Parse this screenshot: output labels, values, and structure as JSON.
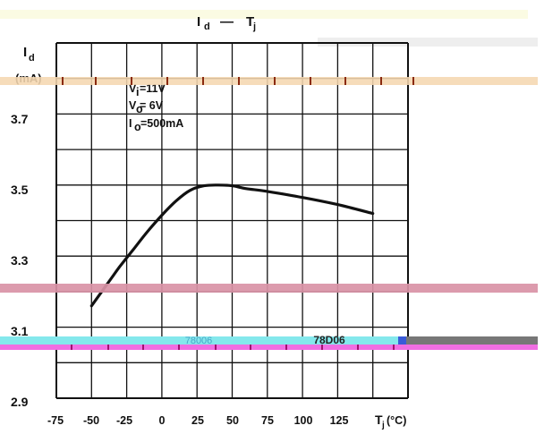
{
  "chart_data": {
    "type": "line",
    "title": "Id — Tj",
    "title_main": "I",
    "title_sub": "d",
    "title_sep": "—",
    "title_x_main": "T",
    "title_x_sub": "j",
    "ylabel": "Id (mA)",
    "ylabel_main": "I",
    "ylabel_sub": "d",
    "ylabel_unit": "(mA)",
    "xlabel": "Tj (°C)",
    "xlabel_main": "T",
    "xlabel_sub": "j",
    "xlabel_unit": "(°C)",
    "x_ticks": [
      -75,
      -50,
      -25,
      0,
      25,
      50,
      75,
      100,
      125
    ],
    "x_tick_labels": [
      "-75",
      "-50",
      "-25",
      "0",
      "25",
      "50",
      "75",
      "100",
      "125"
    ],
    "y_ticks": [
      2.9,
      3.1,
      3.3,
      3.5,
      3.7
    ],
    "y_tick_labels": [
      "2.9",
      "3.1",
      "3.3",
      "3.5",
      "3.7"
    ],
    "xlim": [
      -75,
      175
    ],
    "ylim": [
      2.9,
      3.9
    ],
    "grid": true,
    "series": [
      {
        "x": [
          -50,
          -40,
          -30,
          -20,
          -10,
          0,
          10,
          20,
          30,
          40,
          50,
          60,
          75,
          100,
          125,
          150
        ],
        "y": [
          3.16,
          3.215,
          3.27,
          3.32,
          3.37,
          3.415,
          3.455,
          3.485,
          3.498,
          3.5,
          3.498,
          3.49,
          3.482,
          3.465,
          3.445,
          3.42
        ]
      }
    ],
    "annotations": [
      {
        "label_main": "V",
        "label_sub": "i",
        "value": "=11V"
      },
      {
        "label_main": "V",
        "label_sub": "o",
        "value": "= 6V"
      },
      {
        "label_main": "I",
        "label_sub": "o",
        "value": "=500mA"
      }
    ],
    "band_labels": [
      "78006",
      "78D06"
    ],
    "colors": {
      "line": "#111111",
      "grid": "#111111",
      "band_orange": "#f5d7b0",
      "band_pink": "#d993a6",
      "band_cyan": "#84e8ec",
      "band_magenta": "#f06ee2",
      "band_yellow": "#fbfbe3"
    }
  }
}
